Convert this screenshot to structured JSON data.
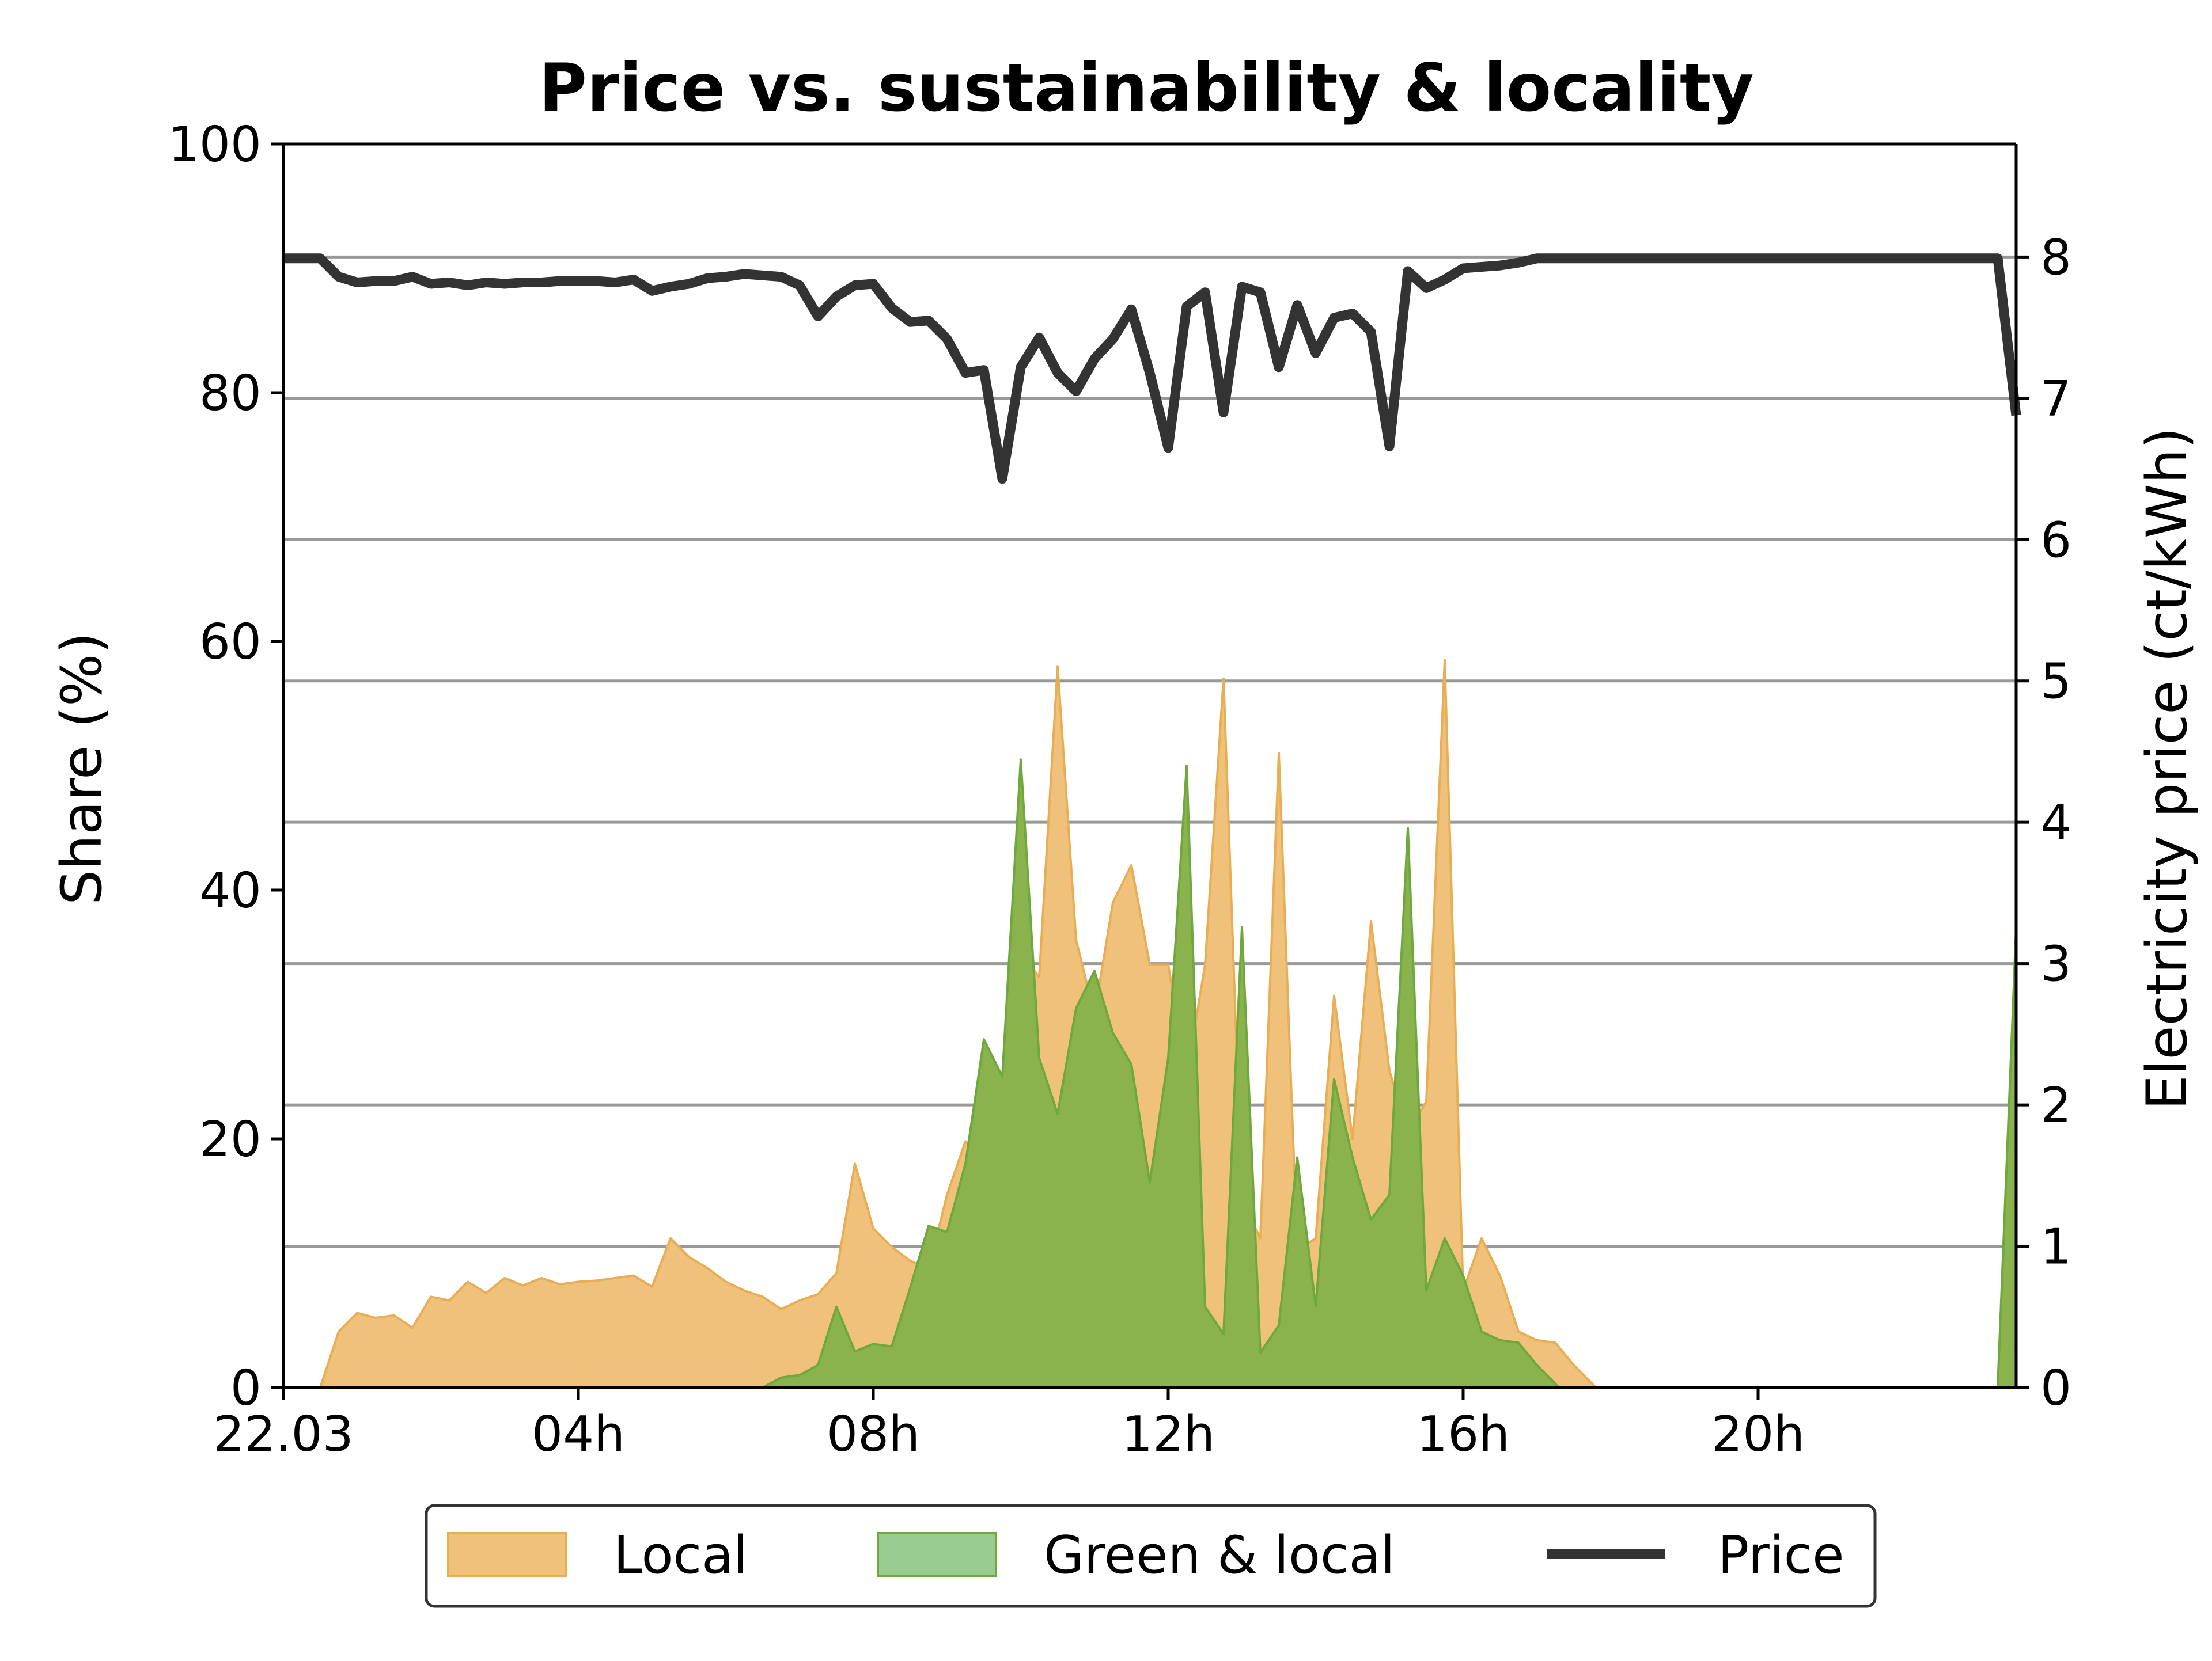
{
  "chart_data": {
    "type": "area",
    "title": "Price vs. sustainability & locality",
    "xlabel": "",
    "ylabel": "Share (%)",
    "ylabel_right": "Electricity price (ct/kWh)",
    "x_unit": "hours since 22.03 00:00",
    "xlim": [
      0,
      23.5
    ],
    "ylim": [
      0,
      100
    ],
    "ylim_right": [
      0,
      8.8
    ],
    "x_ticks": [
      {
        "value": 0,
        "label": "22.03"
      },
      {
        "value": 4,
        "label": "04h"
      },
      {
        "value": 8,
        "label": "08h"
      },
      {
        "value": 12,
        "label": "12h"
      },
      {
        "value": 16,
        "label": "16h"
      },
      {
        "value": 20,
        "label": "20h"
      }
    ],
    "y_ticks": [
      {
        "value": 0,
        "label": "0"
      },
      {
        "value": 20,
        "label": "20"
      },
      {
        "value": 40,
        "label": "40"
      },
      {
        "value": 60,
        "label": "60"
      },
      {
        "value": 80,
        "label": "80"
      },
      {
        "value": 100,
        "label": "100"
      }
    ],
    "y_ticks_right": [
      {
        "value": 0,
        "label": "0"
      },
      {
        "value": 1,
        "label": "1"
      },
      {
        "value": 2,
        "label": "2"
      },
      {
        "value": 3,
        "label": "3"
      },
      {
        "value": 4,
        "label": "4"
      },
      {
        "value": 5,
        "label": "5"
      },
      {
        "value": 6,
        "label": "6"
      },
      {
        "value": 7,
        "label": "7"
      },
      {
        "value": 8,
        "label": "8"
      }
    ],
    "grid": "horizontal lines at right-axis price ticks",
    "legend_position": "bottom-center, below axes",
    "series": [
      {
        "name": "Local",
        "kind": "area",
        "axis": "left",
        "color": "#F0C17A",
        "edge_color": "#E8AE55",
        "points": [
          [
            0.5,
            0
          ],
          [
            0.75,
            4.5
          ],
          [
            1.0,
            6
          ],
          [
            1.25,
            5.6
          ],
          [
            1.5,
            5.8
          ],
          [
            1.75,
            4.8
          ],
          [
            2.0,
            7.3
          ],
          [
            2.25,
            7.0
          ],
          [
            2.5,
            8.5
          ],
          [
            2.75,
            7.6
          ],
          [
            3.0,
            8.8
          ],
          [
            3.25,
            8.2
          ],
          [
            3.5,
            8.8
          ],
          [
            3.75,
            8.3
          ],
          [
            4.0,
            8.5
          ],
          [
            4.25,
            8.6
          ],
          [
            4.5,
            8.8
          ],
          [
            4.75,
            9.0
          ],
          [
            5.0,
            8.1
          ],
          [
            5.25,
            12.0
          ],
          [
            5.5,
            10.5
          ],
          [
            5.75,
            9.6
          ],
          [
            6.0,
            8.5
          ],
          [
            6.25,
            7.8
          ],
          [
            6.5,
            7.3
          ],
          [
            6.75,
            6.3
          ],
          [
            7.0,
            7.0
          ],
          [
            7.25,
            7.5
          ],
          [
            7.5,
            9.2
          ],
          [
            7.75,
            18.0
          ],
          [
            8.0,
            12.8
          ],
          [
            8.25,
            11.3
          ],
          [
            8.5,
            10.2
          ],
          [
            8.75,
            9.5
          ],
          [
            9.0,
            15.5
          ],
          [
            9.25,
            19.8
          ],
          [
            9.5,
            18.8
          ],
          [
            9.75,
            23.5
          ],
          [
            10.0,
            35.0
          ],
          [
            10.25,
            33.0
          ],
          [
            10.5,
            58.0
          ],
          [
            10.75,
            36.0
          ],
          [
            11.0,
            30.0
          ],
          [
            11.25,
            39.0
          ],
          [
            11.5,
            42.0
          ],
          [
            11.75,
            34.0
          ],
          [
            12.0,
            34.0
          ],
          [
            12.25,
            25.0
          ],
          [
            12.5,
            34.0
          ],
          [
            12.75,
            57.0
          ],
          [
            13.0,
            15.0
          ],
          [
            13.25,
            12.0
          ],
          [
            13.5,
            51.0
          ],
          [
            13.75,
            11.0
          ],
          [
            14.0,
            12.0
          ],
          [
            14.25,
            31.5
          ],
          [
            14.5,
            20.0
          ],
          [
            14.75,
            37.5
          ],
          [
            15.0,
            25.5
          ],
          [
            15.25,
            20.5
          ],
          [
            15.5,
            23.0
          ],
          [
            15.75,
            58.5
          ],
          [
            16.0,
            7.8
          ],
          [
            16.25,
            12.0
          ],
          [
            16.5,
            9.0
          ],
          [
            16.75,
            4.5
          ],
          [
            17.0,
            3.8
          ],
          [
            17.25,
            3.6
          ],
          [
            17.5,
            1.8
          ],
          [
            17.75,
            0.3
          ],
          [
            17.8,
            0
          ],
          [
            23.25,
            0
          ],
          [
            23.5,
            36.0
          ]
        ]
      },
      {
        "name": "Green & local",
        "kind": "area",
        "axis": "left",
        "color": "#8AB34E",
        "legend_color": "#99CC90",
        "edge_color": "#6FA83E",
        "points": [
          [
            6.5,
            0
          ],
          [
            6.75,
            0.8
          ],
          [
            7.0,
            1.0
          ],
          [
            7.25,
            1.8
          ],
          [
            7.5,
            6.5
          ],
          [
            7.75,
            2.9
          ],
          [
            8.0,
            3.5
          ],
          [
            8.25,
            3.3
          ],
          [
            8.5,
            8.0
          ],
          [
            8.75,
            13.0
          ],
          [
            9.0,
            12.5
          ],
          [
            9.25,
            18.0
          ],
          [
            9.5,
            28.0
          ],
          [
            9.75,
            25.0
          ],
          [
            10.0,
            50.5
          ],
          [
            10.25,
            26.5
          ],
          [
            10.5,
            22.0
          ],
          [
            10.75,
            30.5
          ],
          [
            11.0,
            33.5
          ],
          [
            11.25,
            28.5
          ],
          [
            11.5,
            26.0
          ],
          [
            11.75,
            16.5
          ],
          [
            12.0,
            26.5
          ],
          [
            12.25,
            50.0
          ],
          [
            12.5,
            6.5
          ],
          [
            12.75,
            4.3
          ],
          [
            13.0,
            37.0
          ],
          [
            13.25,
            2.8
          ],
          [
            13.5,
            5.0
          ],
          [
            13.75,
            18.5
          ],
          [
            14.0,
            6.5
          ],
          [
            14.25,
            24.8
          ],
          [
            14.5,
            18.5
          ],
          [
            14.75,
            13.5
          ],
          [
            15.0,
            15.5
          ],
          [
            15.25,
            45.0
          ],
          [
            15.5,
            7.8
          ],
          [
            15.75,
            12.0
          ],
          [
            16.0,
            9.0
          ],
          [
            16.25,
            4.5
          ],
          [
            16.5,
            3.8
          ],
          [
            16.75,
            3.6
          ],
          [
            17.0,
            1.8
          ],
          [
            17.25,
            0.3
          ],
          [
            17.3,
            0
          ],
          [
            23.25,
            0
          ],
          [
            23.5,
            37.0
          ]
        ]
      },
      {
        "name": "Price",
        "kind": "line",
        "axis": "right",
        "color": "#333333",
        "points": [
          [
            0,
            7.99
          ],
          [
            0.5,
            7.99
          ],
          [
            0.75,
            7.86
          ],
          [
            1.0,
            7.82
          ],
          [
            1.25,
            7.83
          ],
          [
            1.5,
            7.83
          ],
          [
            1.75,
            7.86
          ],
          [
            2.0,
            7.81
          ],
          [
            2.25,
            7.82
          ],
          [
            2.5,
            7.8
          ],
          [
            2.75,
            7.82
          ],
          [
            3.0,
            7.81
          ],
          [
            3.25,
            7.82
          ],
          [
            3.5,
            7.82
          ],
          [
            3.75,
            7.83
          ],
          [
            4.0,
            7.83
          ],
          [
            4.25,
            7.83
          ],
          [
            4.5,
            7.82
          ],
          [
            4.75,
            7.84
          ],
          [
            5.0,
            7.76
          ],
          [
            5.25,
            7.79
          ],
          [
            5.5,
            7.81
          ],
          [
            5.75,
            7.85
          ],
          [
            6.0,
            7.86
          ],
          [
            6.25,
            7.88
          ],
          [
            6.5,
            7.87
          ],
          [
            6.75,
            7.86
          ],
          [
            7.0,
            7.8
          ],
          [
            7.25,
            7.58
          ],
          [
            7.5,
            7.72
          ],
          [
            7.75,
            7.8
          ],
          [
            8.0,
            7.81
          ],
          [
            8.25,
            7.64
          ],
          [
            8.5,
            7.54
          ],
          [
            8.75,
            7.55
          ],
          [
            9.0,
            7.42
          ],
          [
            9.25,
            7.18
          ],
          [
            9.5,
            7.2
          ],
          [
            9.75,
            6.43
          ],
          [
            10.0,
            7.22
          ],
          [
            10.25,
            7.43
          ],
          [
            10.5,
            7.18
          ],
          [
            10.75,
            7.05
          ],
          [
            11.0,
            7.28
          ],
          [
            11.25,
            7.42
          ],
          [
            11.5,
            7.63
          ],
          [
            11.75,
            7.18
          ],
          [
            12.0,
            6.65
          ],
          [
            12.25,
            7.65
          ],
          [
            12.5,
            7.75
          ],
          [
            12.75,
            6.9
          ],
          [
            13.0,
            7.79
          ],
          [
            13.25,
            7.75
          ],
          [
            13.5,
            7.22
          ],
          [
            13.75,
            7.66
          ],
          [
            14.0,
            7.32
          ],
          [
            14.25,
            7.57
          ],
          [
            14.5,
            7.6
          ],
          [
            14.75,
            7.47
          ],
          [
            15.0,
            6.66
          ],
          [
            15.25,
            7.9
          ],
          [
            15.5,
            7.78
          ],
          [
            15.75,
            7.84
          ],
          [
            16.0,
            7.92
          ],
          [
            16.25,
            7.93
          ],
          [
            16.5,
            7.94
          ],
          [
            16.75,
            7.96
          ],
          [
            17.0,
            7.99
          ],
          [
            17.5,
            7.99
          ],
          [
            18.0,
            7.99
          ],
          [
            19.0,
            7.99
          ],
          [
            20.0,
            7.99
          ],
          [
            21.0,
            7.99
          ],
          [
            22.0,
            7.99
          ],
          [
            23.0,
            7.99
          ],
          [
            23.25,
            7.99
          ],
          [
            23.5,
            6.88
          ]
        ]
      }
    ]
  }
}
